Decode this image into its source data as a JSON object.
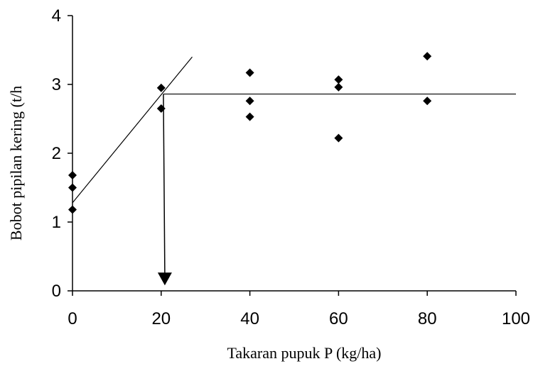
{
  "chart_data": {
    "type": "scatter",
    "xlabel": "Takaran pupuk P (kg/ha)",
    "ylabel": "Bobot pipilan kering (t/h",
    "xlim": [
      0,
      100
    ],
    "ylim": [
      0,
      4
    ],
    "xticks": [
      "0",
      "20",
      "40",
      "60",
      "80",
      "100"
    ],
    "yticks": [
      "0",
      "1",
      "2",
      "3",
      "4"
    ],
    "grid": false,
    "series": [
      {
        "points": [
          {
            "x": 0,
            "y": 1.68
          },
          {
            "x": 0,
            "y": 1.5
          },
          {
            "x": 0,
            "y": 1.18
          },
          {
            "x": 20,
            "y": 2.95
          },
          {
            "x": 20,
            "y": 2.65
          },
          {
            "x": 40,
            "y": 3.17
          },
          {
            "x": 40,
            "y": 2.76
          },
          {
            "x": 40,
            "y": 2.53
          },
          {
            "x": 60,
            "y": 3.07
          },
          {
            "x": 60,
            "y": 2.96
          },
          {
            "x": 60,
            "y": 2.22
          },
          {
            "x": 80,
            "y": 3.41
          },
          {
            "x": 80,
            "y": 2.76
          }
        ]
      }
    ],
    "linear_fit": {
      "x": [
        0,
        27
      ],
      "y": [
        1.28,
        3.4
      ]
    },
    "plateau": {
      "x_start": 20.5,
      "x_end": 100,
      "y": 2.86
    },
    "critical_point": {
      "x": 20.5,
      "y_from": 2.86,
      "y_to": 0.1
    }
  }
}
